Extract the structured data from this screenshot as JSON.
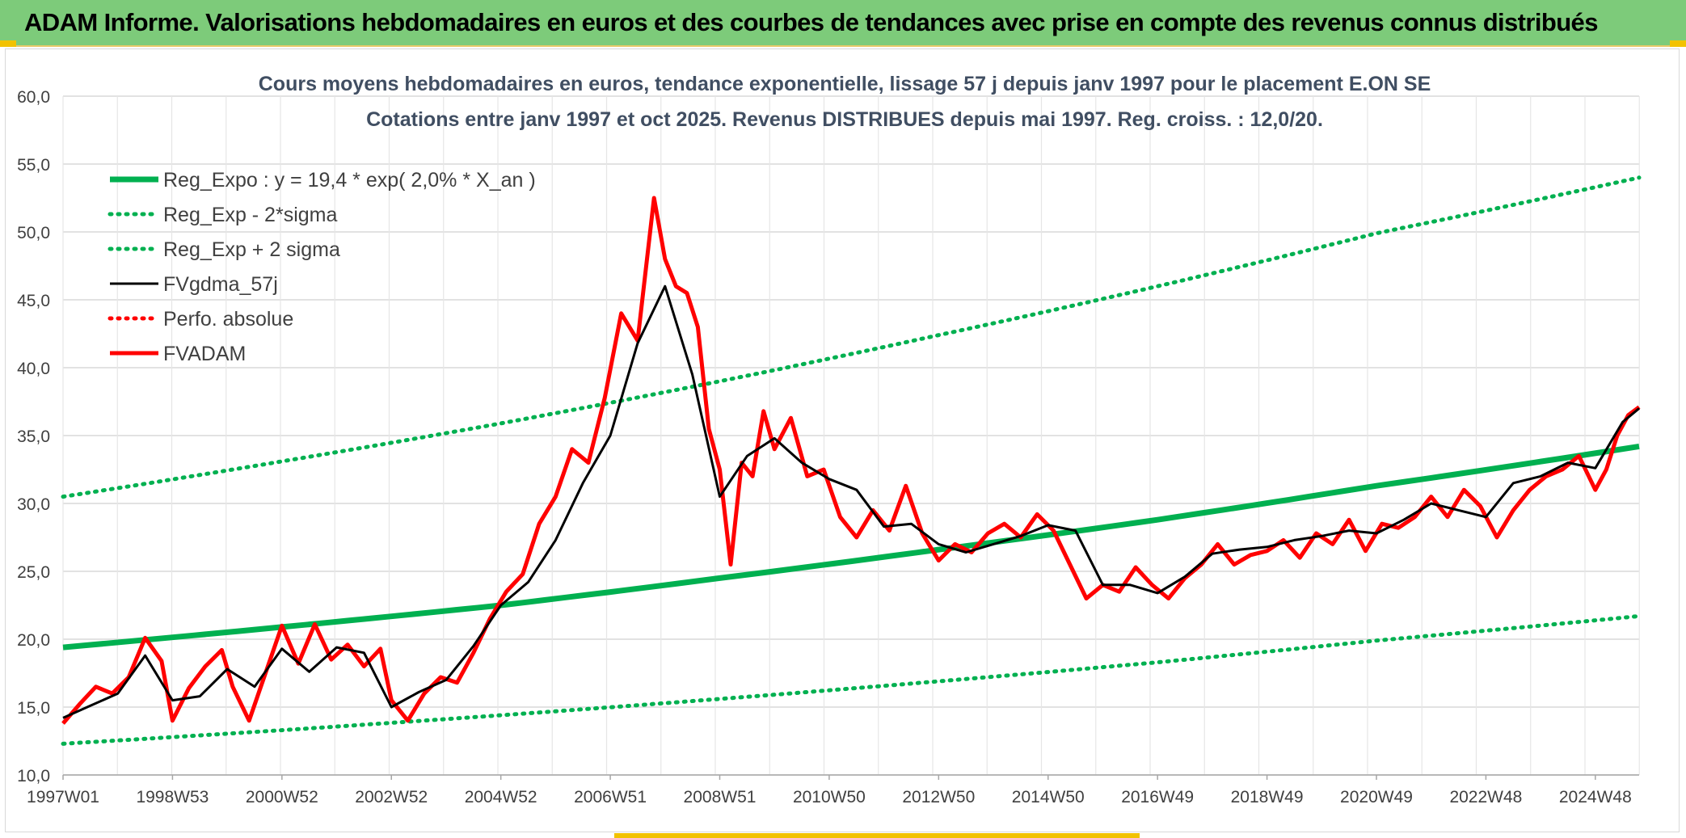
{
  "header": {
    "title": "ADAM Informe. Valorisations hebdomadaires en euros et des courbes de tendances avec prise en compte des revenus connus distribués"
  },
  "colors": {
    "header_bg": "#7dcb7a",
    "green": "#00b050",
    "red": "#ff0000",
    "black": "#000000",
    "grid": "#d9d9d9",
    "accent": "#f2c200"
  },
  "chart_data": {
    "type": "line",
    "title": "Cours moyens hebdomadaires en euros, tendance exponentielle, lissage 57 j depuis janv 1997 pour le placement E.ON SE",
    "subtitle": "Cotations entre janv 1997 et oct 2025. Revenus DISTRIBUES depuis mai 1997. Reg. croiss. : 12,0/20.",
    "xlabel": "",
    "ylabel": "",
    "ylim": [
      10,
      60
    ],
    "yticks": [
      "10,0",
      "15,0",
      "20,0",
      "25,0",
      "30,0",
      "35,0",
      "40,0",
      "45,0",
      "50,0",
      "55,0",
      "60,0"
    ],
    "xlim": [
      1997.0,
      2025.8
    ],
    "xticks": [
      {
        "label": "1997W01",
        "x": 1997.0
      },
      {
        "label": "1998W53",
        "x": 1999.0
      },
      {
        "label": "2000W52",
        "x": 2001.0
      },
      {
        "label": "2002W52",
        "x": 2003.0
      },
      {
        "label": "2004W52",
        "x": 2005.0
      },
      {
        "label": "2006W51",
        "x": 2007.0
      },
      {
        "label": "2008W51",
        "x": 2009.0
      },
      {
        "label": "2010W50",
        "x": 2011.0
      },
      {
        "label": "2012W50",
        "x": 2013.0
      },
      {
        "label": "2014W50",
        "x": 2015.0
      },
      {
        "label": "2016W49",
        "x": 2017.0
      },
      {
        "label": "2018W49",
        "x": 2019.0
      },
      {
        "label": "2020W49",
        "x": 2021.0
      },
      {
        "label": "2022W48",
        "x": 2023.0
      },
      {
        "label": "2024W48",
        "x": 2025.0
      }
    ],
    "grid": true,
    "legend_position": "top-left",
    "series": [
      {
        "name": "Reg_Expo : y = 19,4 * exp( 2,0% *  X_an )",
        "style": "solid-thick",
        "color": "#00b050",
        "x": [
          1997.0,
          2001.0,
          2005.0,
          2009.0,
          2013.0,
          2017.0,
          2021.0,
          2025.8
        ],
        "y": [
          19.4,
          20.9,
          22.5,
          24.5,
          26.6,
          28.8,
          31.3,
          34.2
        ]
      },
      {
        "name": "Reg_Exp - 2*sigma",
        "style": "dotted",
        "color": "#00b050",
        "x": [
          1997.0,
          2001.0,
          2005.0,
          2009.0,
          2013.0,
          2017.0,
          2021.0,
          2025.8
        ],
        "y": [
          12.3,
          13.3,
          14.4,
          15.6,
          16.9,
          18.3,
          19.9,
          21.7
        ]
      },
      {
        "name": "Reg_Exp + 2 sigma",
        "style": "dotted",
        "color": "#00b050",
        "x": [
          1997.0,
          2001.0,
          2005.0,
          2009.0,
          2013.0,
          2017.0,
          2021.0,
          2025.8
        ],
        "y": [
          30.5,
          33.1,
          35.9,
          39.0,
          42.4,
          46.0,
          49.9,
          54.0
        ]
      },
      {
        "name": "FVgdma_57j",
        "style": "solid",
        "color": "#000000",
        "x": [
          1997.0,
          1997.5,
          1998.0,
          1998.5,
          1999.0,
          1999.5,
          2000.0,
          2000.5,
          2001.0,
          2001.5,
          2002.0,
          2002.5,
          2003.0,
          2003.5,
          2004.0,
          2004.5,
          2005.0,
          2005.5,
          2006.0,
          2006.5,
          2007.0,
          2007.5,
          2008.0,
          2008.5,
          2009.0,
          2009.5,
          2010.0,
          2010.5,
          2011.0,
          2011.5,
          2012.0,
          2012.5,
          2013.0,
          2013.5,
          2014.0,
          2014.5,
          2015.0,
          2015.5,
          2016.0,
          2016.5,
          2017.0,
          2017.5,
          2018.0,
          2018.5,
          2019.0,
          2019.5,
          2020.0,
          2020.5,
          2021.0,
          2021.5,
          2022.0,
          2022.5,
          2023.0,
          2023.5,
          2024.0,
          2024.5,
          2025.0,
          2025.5,
          2025.8
        ],
        "y": [
          14.2,
          15.1,
          16.0,
          18.8,
          15.5,
          15.8,
          17.8,
          16.5,
          19.3,
          17.6,
          19.4,
          19.0,
          15.0,
          16.1,
          17.0,
          19.5,
          22.5,
          24.2,
          27.3,
          31.5,
          35.0,
          41.8,
          46.0,
          39.5,
          30.5,
          33.5,
          34.8,
          33.0,
          31.8,
          31.0,
          28.3,
          28.5,
          27.0,
          26.4,
          27.0,
          27.6,
          28.4,
          28.0,
          24.0,
          24.0,
          23.4,
          24.6,
          26.3,
          26.6,
          26.8,
          27.3,
          27.6,
          28.0,
          27.8,
          28.8,
          30.0,
          29.5,
          29.0,
          31.5,
          32.0,
          33.0,
          32.6,
          36.0,
          37.0
        ]
      },
      {
        "name": "Perfo. absolue",
        "style": "dotted",
        "color": "#ff0000",
        "x": [],
        "y": []
      },
      {
        "name": "FVADAM",
        "style": "solid-thick",
        "color": "#ff0000",
        "x": [
          1997.0,
          1997.3,
          1997.6,
          1997.9,
          1998.2,
          1998.5,
          1998.8,
          1999.0,
          1999.3,
          1999.6,
          1999.9,
          2000.1,
          2000.4,
          2000.7,
          2001.0,
          2001.3,
          2001.6,
          2001.9,
          2002.2,
          2002.5,
          2002.8,
          2003.0,
          2003.3,
          2003.6,
          2003.9,
          2004.2,
          2004.5,
          2004.8,
          2005.1,
          2005.4,
          2005.7,
          2006.0,
          2006.3,
          2006.6,
          2006.9,
          2007.2,
          2007.5,
          2007.8,
          2008.0,
          2008.2,
          2008.4,
          2008.6,
          2008.8,
          2009.0,
          2009.2,
          2009.4,
          2009.6,
          2009.8,
          2010.0,
          2010.3,
          2010.6,
          2010.9,
          2011.2,
          2011.5,
          2011.8,
          2012.1,
          2012.4,
          2012.7,
          2013.0,
          2013.3,
          2013.6,
          2013.9,
          2014.2,
          2014.5,
          2014.8,
          2015.1,
          2015.4,
          2015.7,
          2016.0,
          2016.3,
          2016.6,
          2016.9,
          2017.2,
          2017.5,
          2017.8,
          2018.1,
          2018.4,
          2018.7,
          2019.0,
          2019.3,
          2019.6,
          2019.9,
          2020.2,
          2020.5,
          2020.8,
          2021.1,
          2021.4,
          2021.7,
          2022.0,
          2022.3,
          2022.6,
          2022.9,
          2023.2,
          2023.5,
          2023.8,
          2024.1,
          2024.4,
          2024.7,
          2025.0,
          2025.2,
          2025.4,
          2025.6,
          2025.8
        ],
        "y": [
          13.8,
          15.2,
          16.5,
          16.0,
          17.2,
          20.1,
          18.4,
          14.0,
          16.4,
          18.0,
          19.2,
          16.5,
          14.0,
          17.5,
          21.0,
          18.2,
          21.1,
          18.5,
          19.6,
          18.0,
          19.3,
          15.5,
          14.0,
          16.0,
          17.2,
          16.8,
          19.0,
          21.5,
          23.5,
          24.8,
          28.5,
          30.5,
          34.0,
          33.0,
          37.8,
          44.0,
          42.0,
          52.5,
          48.0,
          46.0,
          45.5,
          43.0,
          35.5,
          32.5,
          25.5,
          33.0,
          32.0,
          36.8,
          34.0,
          36.3,
          32.0,
          32.5,
          29.0,
          27.5,
          29.5,
          28.0,
          31.3,
          27.8,
          25.8,
          27.0,
          26.4,
          27.8,
          28.5,
          27.5,
          29.2,
          28.0,
          25.5,
          23.0,
          24.0,
          23.5,
          25.3,
          24.0,
          23.0,
          24.5,
          25.5,
          27.0,
          25.5,
          26.2,
          26.5,
          27.3,
          26.0,
          27.8,
          27.0,
          28.8,
          26.5,
          28.5,
          28.2,
          29.0,
          30.5,
          29.0,
          31.0,
          29.8,
          27.5,
          29.5,
          31.0,
          32.0,
          32.5,
          33.5,
          31.0,
          32.5,
          35.0,
          36.5,
          37.1
        ]
      }
    ]
  }
}
